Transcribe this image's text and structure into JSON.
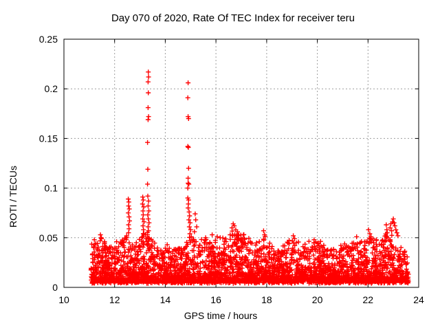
{
  "page": {
    "background_color": "#ffffff"
  },
  "chart_data": {
    "type": "scatter",
    "title": "Day 070 of 2020, Rate Of TEC Index for receiver teru",
    "xlabel": "GPS time / hours",
    "ylabel": "ROTI / TECUs",
    "xlim": [
      10,
      24
    ],
    "ylim": [
      0,
      0.25
    ],
    "xticks": {
      "values": [
        10,
        12,
        14,
        16,
        18,
        20,
        22,
        24
      ],
      "labels": [
        "10",
        "12",
        "14",
        "16",
        "18",
        "20",
        "22",
        "24"
      ]
    },
    "yticks": {
      "values": [
        0,
        0.05,
        0.1,
        0.15,
        0.2,
        0.25
      ],
      "labels": [
        "0",
        "0.05",
        "0.1",
        "0.15",
        "0.2",
        "0.25"
      ]
    },
    "grid": {
      "show": true,
      "color": "#9c9c9c",
      "x_values": [
        12,
        14,
        16,
        18,
        20,
        22
      ],
      "y_values": [
        0.05,
        0.1,
        0.15,
        0.2
      ]
    },
    "legend": {
      "show": false
    },
    "marker": {
      "symbol": "+",
      "color": "#ff0000",
      "size": 7,
      "stroke_width": 1.4
    },
    "series_name": "ROTI",
    "spike_points": [
      [
        11.2,
        0.048
      ],
      [
        11.44,
        0.053
      ],
      [
        11.47,
        0.05
      ],
      [
        12.54,
        0.089
      ],
      [
        12.56,
        0.086
      ],
      [
        12.55,
        0.082
      ],
      [
        12.58,
        0.079
      ],
      [
        12.54,
        0.075
      ],
      [
        12.57,
        0.071
      ],
      [
        12.59,
        0.067
      ],
      [
        12.55,
        0.063
      ],
      [
        12.57,
        0.059
      ],
      [
        12.55,
        0.055
      ],
      [
        13.11,
        0.091
      ],
      [
        13.13,
        0.088
      ],
      [
        13.1,
        0.084
      ],
      [
        13.15,
        0.081
      ],
      [
        13.12,
        0.077
      ],
      [
        13.13,
        0.073
      ],
      [
        13.11,
        0.069
      ],
      [
        13.16,
        0.066
      ],
      [
        13.12,
        0.062
      ],
      [
        13.14,
        0.058
      ],
      [
        13.13,
        0.054
      ],
      [
        13.1,
        0.051
      ],
      [
        13.33,
        0.217
      ],
      [
        13.34,
        0.212
      ],
      [
        13.32,
        0.207
      ],
      [
        13.33,
        0.196
      ],
      [
        13.32,
        0.181
      ],
      [
        13.34,
        0.172
      ],
      [
        13.32,
        0.169
      ],
      [
        13.3,
        0.146
      ],
      [
        13.31,
        0.119
      ],
      [
        13.3,
        0.104
      ],
      [
        13.31,
        0.092
      ],
      [
        13.34,
        0.087
      ],
      [
        13.32,
        0.082
      ],
      [
        13.35,
        0.077
      ],
      [
        13.31,
        0.073
      ],
      [
        13.33,
        0.069
      ],
      [
        13.36,
        0.065
      ],
      [
        13.32,
        0.061
      ],
      [
        13.34,
        0.057
      ],
      [
        13.3,
        0.053
      ],
      [
        13.37,
        0.049
      ],
      [
        14.9,
        0.206
      ],
      [
        14.89,
        0.191
      ],
      [
        14.9,
        0.172
      ],
      [
        14.92,
        0.17
      ],
      [
        14.89,
        0.142
      ],
      [
        14.91,
        0.141
      ],
      [
        14.92,
        0.12
      ],
      [
        14.9,
        0.11
      ],
      [
        14.9,
        0.105
      ],
      [
        14.93,
        0.104
      ],
      [
        14.89,
        0.1
      ],
      [
        14.89,
        0.09
      ],
      [
        14.92,
        0.088
      ],
      [
        14.91,
        0.084
      ],
      [
        14.9,
        0.08
      ],
      [
        14.94,
        0.076
      ],
      [
        14.96,
        0.072
      ],
      [
        14.93,
        0.068
      ],
      [
        14.98,
        0.065
      ],
      [
        14.95,
        0.061
      ],
      [
        15.0,
        0.058
      ],
      [
        14.97,
        0.054
      ],
      [
        15.03,
        0.051
      ],
      [
        15.18,
        0.074
      ],
      [
        15.2,
        0.068
      ],
      [
        15.24,
        0.061
      ],
      [
        15.15,
        0.056
      ],
      [
        15.85,
        0.053
      ],
      [
        16.05,
        0.051
      ],
      [
        16.63,
        0.06
      ],
      [
        16.68,
        0.064
      ],
      [
        16.72,
        0.062
      ],
      [
        16.78,
        0.058
      ],
      [
        16.85,
        0.056
      ],
      [
        16.9,
        0.053
      ],
      [
        17.88,
        0.057
      ],
      [
        17.92,
        0.053
      ],
      [
        19.05,
        0.052
      ],
      [
        19.1,
        0.049
      ],
      [
        21.55,
        0.051
      ],
      [
        22.02,
        0.058
      ],
      [
        22.07,
        0.054
      ],
      [
        22.12,
        0.051
      ],
      [
        22.7,
        0.052
      ],
      [
        22.72,
        0.063
      ],
      [
        22.74,
        0.058
      ],
      [
        22.76,
        0.055
      ],
      [
        22.87,
        0.06
      ],
      [
        22.9,
        0.064
      ],
      [
        22.93,
        0.057
      ],
      [
        22.97,
        0.066
      ],
      [
        23.0,
        0.069
      ],
      [
        23.03,
        0.065
      ],
      [
        23.06,
        0.062
      ],
      [
        23.1,
        0.058
      ],
      [
        23.14,
        0.055
      ],
      [
        23.18,
        0.052
      ]
    ],
    "noise_band": {
      "x_start": 11.05,
      "x_end": 23.6,
      "n_points": 3600,
      "y_floor": 0.004,
      "jitter": 0.004,
      "distribution_shape": 2.6,
      "seed": 11,
      "envelope": [
        [
          11.05,
          0.04
        ],
        [
          11.25,
          0.046
        ],
        [
          11.45,
          0.052
        ],
        [
          11.65,
          0.042
        ],
        [
          11.9,
          0.04
        ],
        [
          12.1,
          0.044
        ],
        [
          12.3,
          0.048
        ],
        [
          12.55,
          0.052
        ],
        [
          12.75,
          0.042
        ],
        [
          13.0,
          0.05
        ],
        [
          13.3,
          0.055
        ],
        [
          13.55,
          0.045
        ],
        [
          13.8,
          0.04
        ],
        [
          14.1,
          0.042
        ],
        [
          14.4,
          0.038
        ],
        [
          14.7,
          0.042
        ],
        [
          15.0,
          0.05
        ],
        [
          15.3,
          0.046
        ],
        [
          15.6,
          0.048
        ],
        [
          15.85,
          0.052
        ],
        [
          16.1,
          0.046
        ],
        [
          16.4,
          0.05
        ],
        [
          16.7,
          0.058
        ],
        [
          16.95,
          0.052
        ],
        [
          17.2,
          0.05
        ],
        [
          17.5,
          0.042
        ],
        [
          17.9,
          0.052
        ],
        [
          18.2,
          0.042
        ],
        [
          18.5,
          0.038
        ],
        [
          18.8,
          0.044
        ],
        [
          19.1,
          0.048
        ],
        [
          19.4,
          0.042
        ],
        [
          19.7,
          0.044
        ],
        [
          20.0,
          0.046
        ],
        [
          20.35,
          0.04
        ],
        [
          20.7,
          0.038
        ],
        [
          21.0,
          0.042
        ],
        [
          21.3,
          0.04
        ],
        [
          21.6,
          0.046
        ],
        [
          21.9,
          0.044
        ],
        [
          22.1,
          0.05
        ],
        [
          22.4,
          0.046
        ],
        [
          22.7,
          0.052
        ],
        [
          23.0,
          0.05
        ],
        [
          23.25,
          0.042
        ],
        [
          23.45,
          0.035
        ],
        [
          23.6,
          0.03
        ]
      ]
    }
  }
}
